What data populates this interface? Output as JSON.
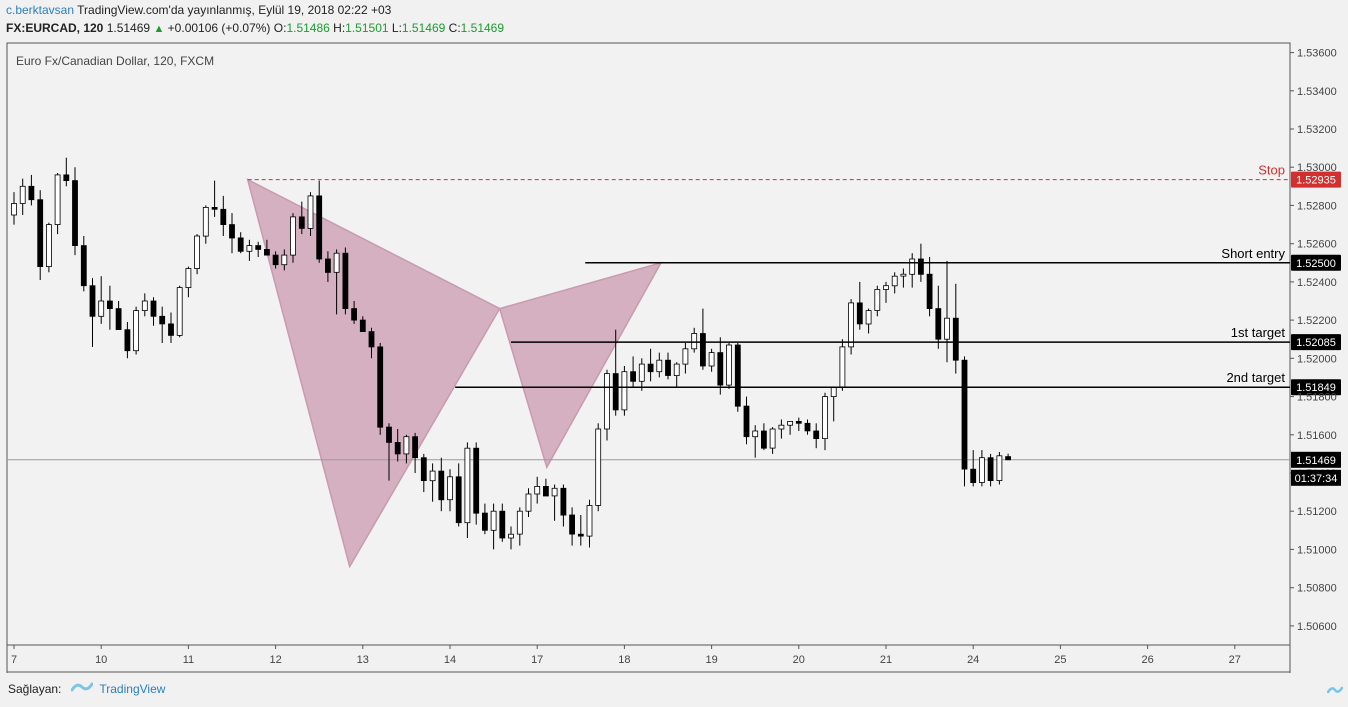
{
  "header": {
    "author": "c.berktavsan",
    "published": "TradingView.com'da yayınlanmış, Eylül 19, 2018 02:22 +03",
    "symbol": "FX:EURCAD, 120",
    "last": "1.51469",
    "change": "+0.00106 (+0.07%)",
    "o_label": "O:",
    "o": "1.51486",
    "h_label": "H:",
    "h": "1.51501",
    "l_label": "L:",
    "l": "1.51469",
    "c_label": "C:",
    "c": "1.51469"
  },
  "footer": {
    "label": "Sağlayan:",
    "provider": "TradingView"
  },
  "colors": {
    "pattern": "#c99aaf",
    "stop": "#d32f2f",
    "bull": "#ffffff",
    "bear": "#000000",
    "line": "#000000"
  },
  "chart_data": {
    "type": "candlestick",
    "title": "Euro Fx/Canadian Dollar, 120, FXCM",
    "ylim": [
      1.505,
      1.5365
    ],
    "y_ticks": [
      "1.50600",
      "1.50800",
      "1.51000",
      "1.51200",
      "1.51400",
      "1.51600",
      "1.51800",
      "1.52000",
      "1.52200",
      "1.52400",
      "1.52600",
      "1.52800",
      "1.53000",
      "1.53200",
      "1.53400",
      "1.53600"
    ],
    "x_labels": [
      {
        "label": "7",
        "i": 0
      },
      {
        "label": "10",
        "i": 10
      },
      {
        "label": "11",
        "i": 20
      },
      {
        "label": "12",
        "i": 30
      },
      {
        "label": "13",
        "i": 40
      },
      {
        "label": "14",
        "i": 50
      },
      {
        "label": "17",
        "i": 60
      },
      {
        "label": "18",
        "i": 70
      },
      {
        "label": "19",
        "i": 80
      },
      {
        "label": "20",
        "i": 90
      },
      {
        "label": "21",
        "i": 100
      },
      {
        "label": "24",
        "i": 110
      },
      {
        "label": "25",
        "i": 120
      },
      {
        "label": "26",
        "i": 130
      },
      {
        "label": "27",
        "i": 140
      }
    ],
    "candles": [
      [
        1.5275,
        1.5287,
        1.527,
        1.5281
      ],
      [
        1.5281,
        1.5294,
        1.5275,
        1.529
      ],
      [
        1.529,
        1.5296,
        1.528,
        1.5283
      ],
      [
        1.5283,
        1.5288,
        1.5241,
        1.5248
      ],
      [
        1.5248,
        1.5271,
        1.5245,
        1.527
      ],
      [
        1.527,
        1.5297,
        1.5265,
        1.5296
      ],
      [
        1.5296,
        1.5305,
        1.529,
        1.5293
      ],
      [
        1.5293,
        1.53,
        1.5254,
        1.5259
      ],
      [
        1.5259,
        1.5264,
        1.5235,
        1.5238
      ],
      [
        1.5238,
        1.5242,
        1.5206,
        1.5222
      ],
      [
        1.5222,
        1.5243,
        1.5218,
        1.523
      ],
      [
        1.523,
        1.5238,
        1.5215,
        1.5226
      ],
      [
        1.5226,
        1.523,
        1.5218,
        1.5215
      ],
      [
        1.5215,
        1.5219,
        1.52,
        1.5204
      ],
      [
        1.5204,
        1.5227,
        1.5202,
        1.5225
      ],
      [
        1.5225,
        1.5234,
        1.5222,
        1.523
      ],
      [
        1.523,
        1.5232,
        1.5217,
        1.5222
      ],
      [
        1.5222,
        1.5227,
        1.5208,
        1.5218
      ],
      [
        1.5218,
        1.5224,
        1.5208,
        1.5212
      ],
      [
        1.5212,
        1.5238,
        1.5211,
        1.5237
      ],
      [
        1.5237,
        1.5248,
        1.5232,
        1.5247
      ],
      [
        1.5247,
        1.5265,
        1.5244,
        1.5264
      ],
      [
        1.5264,
        1.528,
        1.526,
        1.5279
      ],
      [
        1.5279,
        1.5293,
        1.5274,
        1.5278
      ],
      [
        1.5278,
        1.5285,
        1.5264,
        1.527
      ],
      [
        1.527,
        1.5276,
        1.5255,
        1.5263
      ],
      [
        1.5263,
        1.5266,
        1.5255,
        1.5256
      ],
      [
        1.5256,
        1.5262,
        1.5251,
        1.5259
      ],
      [
        1.5259,
        1.5261,
        1.5253,
        1.5257
      ],
      [
        1.5257,
        1.5262,
        1.5254,
        1.5254
      ],
      [
        1.5254,
        1.5256,
        1.5247,
        1.5249
      ],
      [
        1.5249,
        1.5257,
        1.5246,
        1.5254
      ],
      [
        1.5254,
        1.5276,
        1.525,
        1.5274
      ],
      [
        1.5274,
        1.5282,
        1.5265,
        1.5268
      ],
      [
        1.5268,
        1.5287,
        1.5264,
        1.5285
      ],
      [
        1.5285,
        1.5293,
        1.525,
        1.5252
      ],
      [
        1.5252,
        1.5256,
        1.524,
        1.5245
      ],
      [
        1.5245,
        1.5257,
        1.5223,
        1.5255
      ],
      [
        1.5255,
        1.5258,
        1.5223,
        1.5226
      ],
      [
        1.5226,
        1.523,
        1.5218,
        1.522
      ],
      [
        1.522,
        1.5222,
        1.5214,
        1.5214
      ],
      [
        1.5214,
        1.5216,
        1.52,
        1.5206
      ],
      [
        1.5206,
        1.5208,
        1.516,
        1.5164
      ],
      [
        1.5164,
        1.5166,
        1.5136,
        1.5156
      ],
      [
        1.5156,
        1.5163,
        1.5146,
        1.515
      ],
      [
        1.515,
        1.516,
        1.5145,
        1.5159
      ],
      [
        1.5159,
        1.5161,
        1.514,
        1.5148
      ],
      [
        1.5148,
        1.515,
        1.513,
        1.5136
      ],
      [
        1.5136,
        1.5145,
        1.5125,
        1.5141
      ],
      [
        1.5141,
        1.5148,
        1.512,
        1.5126
      ],
      [
        1.5126,
        1.5142,
        1.512,
        1.5138
      ],
      [
        1.5138,
        1.5145,
        1.5112,
        1.5114
      ],
      [
        1.5114,
        1.5156,
        1.5106,
        1.5153
      ],
      [
        1.5153,
        1.5156,
        1.5113,
        1.5119
      ],
      [
        1.5119,
        1.5124,
        1.5108,
        1.511
      ],
      [
        1.511,
        1.5124,
        1.51,
        1.512
      ],
      [
        1.512,
        1.5124,
        1.5104,
        1.5106
      ],
      [
        1.5106,
        1.5112,
        1.51,
        1.5108
      ],
      [
        1.5108,
        1.5122,
        1.5102,
        1.512
      ],
      [
        1.512,
        1.5132,
        1.5117,
        1.5129
      ],
      [
        1.5129,
        1.5138,
        1.5124,
        1.5133
      ],
      [
        1.5133,
        1.5137,
        1.5128,
        1.5128
      ],
      [
        1.5128,
        1.5134,
        1.5115,
        1.5132
      ],
      [
        1.5132,
        1.5134,
        1.5112,
        1.5118
      ],
      [
        1.5118,
        1.5122,
        1.5102,
        1.5108
      ],
      [
        1.5108,
        1.5118,
        1.5102,
        1.5107
      ],
      [
        1.5107,
        1.5126,
        1.5101,
        1.5123
      ],
      [
        1.5123,
        1.5166,
        1.512,
        1.5163
      ],
      [
        1.5163,
        1.5194,
        1.5157,
        1.5192
      ],
      [
        1.5192,
        1.5215,
        1.517,
        1.5173
      ],
      [
        1.5173,
        1.5196,
        1.517,
        1.5193
      ],
      [
        1.5193,
        1.5201,
        1.5185,
        1.5188
      ],
      [
        1.5188,
        1.52,
        1.5183,
        1.5197
      ],
      [
        1.5197,
        1.5205,
        1.5188,
        1.5193
      ],
      [
        1.5193,
        1.5203,
        1.519,
        1.5199
      ],
      [
        1.5199,
        1.5203,
        1.5189,
        1.5191
      ],
      [
        1.5191,
        1.5198,
        1.5185,
        1.5197
      ],
      [
        1.5197,
        1.5208,
        1.5192,
        1.5205
      ],
      [
        1.5205,
        1.5216,
        1.5203,
        1.5213
      ],
      [
        1.5213,
        1.5226,
        1.5194,
        1.5196
      ],
      [
        1.5196,
        1.5205,
        1.5193,
        1.5203
      ],
      [
        1.5203,
        1.5211,
        1.5181,
        1.5186
      ],
      [
        1.5186,
        1.5208,
        1.5184,
        1.5207
      ],
      [
        1.5207,
        1.5208,
        1.5172,
        1.5175
      ],
      [
        1.5175,
        1.518,
        1.5155,
        1.5159
      ],
      [
        1.5159,
        1.5165,
        1.5148,
        1.5162
      ],
      [
        1.5162,
        1.5166,
        1.5152,
        1.5153
      ],
      [
        1.5153,
        1.5164,
        1.515,
        1.5163
      ],
      [
        1.5163,
        1.5168,
        1.5158,
        1.5165
      ],
      [
        1.5165,
        1.5167,
        1.516,
        1.5167
      ],
      [
        1.5167,
        1.5169,
        1.5162,
        1.5166
      ],
      [
        1.5166,
        1.5168,
        1.516,
        1.5162
      ],
      [
        1.5162,
        1.5166,
        1.5153,
        1.5158
      ],
      [
        1.5158,
        1.5182,
        1.5152,
        1.518
      ],
      [
        1.518,
        1.5185,
        1.5167,
        1.5185
      ],
      [
        1.5185,
        1.521,
        1.5183,
        1.5206
      ],
      [
        1.5206,
        1.5231,
        1.5202,
        1.5229
      ],
      [
        1.5229,
        1.524,
        1.5215,
        1.5218
      ],
      [
        1.5218,
        1.5226,
        1.5213,
        1.5225
      ],
      [
        1.5225,
        1.5238,
        1.5222,
        1.5236
      ],
      [
        1.5236,
        1.524,
        1.5229,
        1.5238
      ],
      [
        1.5238,
        1.5245,
        1.5234,
        1.5243
      ],
      [
        1.5243,
        1.5247,
        1.5237,
        1.5244
      ],
      [
        1.5244,
        1.5255,
        1.5237,
        1.5252
      ],
      [
        1.5252,
        1.526,
        1.524,
        1.5244
      ],
      [
        1.5244,
        1.5253,
        1.5222,
        1.5226
      ],
      [
        1.5226,
        1.5238,
        1.5205,
        1.521
      ],
      [
        1.521,
        1.5251,
        1.5198,
        1.5221
      ],
      [
        1.5221,
        1.5239,
        1.5192,
        1.5199
      ],
      [
        1.5199,
        1.5201,
        1.5133,
        1.5142
      ],
      [
        1.5142,
        1.5152,
        1.5133,
        1.5135
      ],
      [
        1.5135,
        1.5152,
        1.5133,
        1.5148
      ],
      [
        1.5148,
        1.515,
        1.5133,
        1.5136
      ],
      [
        1.5136,
        1.5151,
        1.5134,
        1.5149
      ],
      [
        1.51486,
        1.51501,
        1.51469,
        1.51469
      ]
    ],
    "pattern": {
      "type": "bearish harmonic",
      "X": {
        "i": 26.8,
        "p": 1.52935
      },
      "A": {
        "i": 38.5,
        "p": 1.5091
      },
      "B": {
        "i": 55.7,
        "p": 1.5226
      },
      "C": {
        "i": 61.1,
        "p": 1.5143
      },
      "D": {
        "i": 74.2,
        "p": 1.525
      }
    },
    "levels": [
      {
        "label": "Stop",
        "price": 1.52935,
        "price_label": "1.52935",
        "style": "dashed",
        "color": "#d32f2f",
        "from": 26.8
      },
      {
        "label": "Short entry",
        "price": 1.525,
        "price_label": "1.52500",
        "style": "solid",
        "color": "#000000",
        "from": 65.5
      },
      {
        "label": "1st target",
        "price": 1.52085,
        "price_label": "1.52085",
        "style": "solid",
        "color": "#000000",
        "from": 57
      },
      {
        "label": "2nd target",
        "price": 1.51849,
        "price_label": "1.51849",
        "style": "solid",
        "color": "#000000",
        "from": 50.6
      }
    ],
    "last_price": {
      "price": 1.51469,
      "label": "1.51469",
      "countdown": "01:37:34"
    }
  }
}
